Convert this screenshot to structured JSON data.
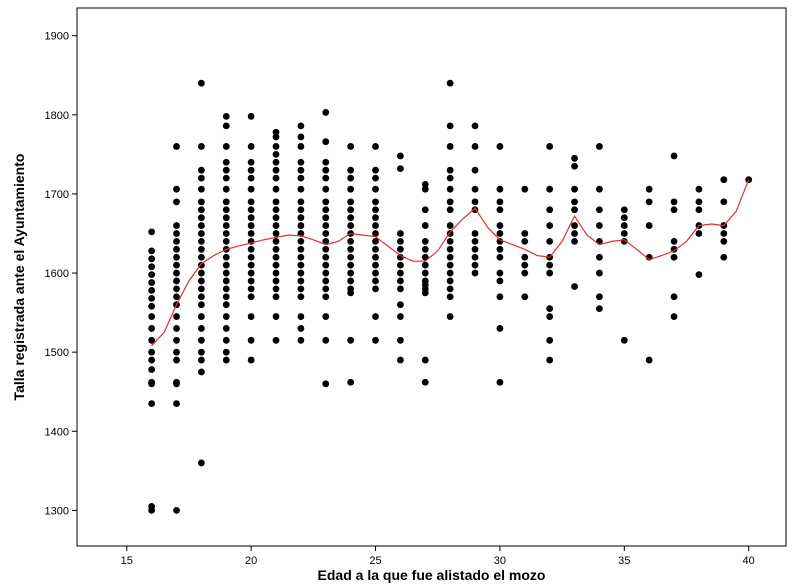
{
  "chart_data": {
    "type": "scatter",
    "title": "",
    "xlabel": "Edad a la que fue alistado el mozo",
    "ylabel": "Talla registrada ante el Ayuntamiento",
    "xlim": [
      13,
      41.5
    ],
    "ylim": [
      1255,
      1935
    ],
    "xticks": [
      15,
      20,
      25,
      30,
      35,
      40
    ],
    "yticks": [
      1300,
      1400,
      1500,
      1600,
      1700,
      1800,
      1900
    ],
    "grid": false,
    "legend": "none",
    "colors": {
      "points": "#000000",
      "smooth_line": "#e03030",
      "frame": "#000000"
    },
    "points": [
      {
        "x": 16,
        "y": [
          1652,
          1628,
          1618,
          1608,
          1598,
          1588,
          1578,
          1568,
          1558,
          1545,
          1530,
          1515,
          1500,
          1490,
          1478,
          1462,
          1460,
          1435,
          1305,
          1300
        ]
      },
      {
        "x": 17,
        "y": [
          1760,
          1706,
          1690,
          1660,
          1650,
          1640,
          1630,
          1620,
          1610,
          1600,
          1590,
          1580,
          1570,
          1560,
          1545,
          1530,
          1515,
          1500,
          1490,
          1462,
          1460,
          1435,
          1300
        ]
      },
      {
        "x": 18,
        "y": [
          1840,
          1760,
          1730,
          1720,
          1706,
          1690,
          1680,
          1670,
          1660,
          1650,
          1640,
          1630,
          1620,
          1610,
          1600,
          1590,
          1580,
          1570,
          1560,
          1545,
          1530,
          1515,
          1500,
          1490,
          1475,
          1360
        ]
      },
      {
        "x": 19,
        "y": [
          1798,
          1786,
          1760,
          1740,
          1730,
          1720,
          1706,
          1690,
          1680,
          1670,
          1660,
          1650,
          1640,
          1630,
          1620,
          1610,
          1600,
          1590,
          1580,
          1570,
          1560,
          1545,
          1530,
          1515,
          1500,
          1490
        ]
      },
      {
        "x": 20,
        "y": [
          1798,
          1760,
          1740,
          1730,
          1720,
          1706,
          1690,
          1680,
          1670,
          1660,
          1650,
          1640,
          1630,
          1620,
          1610,
          1600,
          1590,
          1580,
          1570,
          1545,
          1515,
          1490
        ]
      },
      {
        "x": 21,
        "y": [
          1778,
          1772,
          1760,
          1750,
          1740,
          1730,
          1720,
          1706,
          1690,
          1680,
          1670,
          1660,
          1650,
          1640,
          1630,
          1620,
          1610,
          1600,
          1590,
          1580,
          1570,
          1545,
          1515
        ]
      },
      {
        "x": 22,
        "y": [
          1786,
          1772,
          1760,
          1740,
          1730,
          1720,
          1706,
          1690,
          1680,
          1670,
          1660,
          1650,
          1640,
          1630,
          1620,
          1610,
          1600,
          1590,
          1580,
          1570,
          1545,
          1530,
          1515
        ]
      },
      {
        "x": 23,
        "y": [
          1803,
          1766,
          1740,
          1730,
          1720,
          1706,
          1690,
          1680,
          1670,
          1660,
          1650,
          1640,
          1630,
          1620,
          1610,
          1600,
          1590,
          1580,
          1570,
          1545,
          1515,
          1460
        ]
      },
      {
        "x": 24,
        "y": [
          1760,
          1730,
          1720,
          1706,
          1690,
          1680,
          1670,
          1660,
          1650,
          1640,
          1630,
          1620,
          1610,
          1600,
          1590,
          1580,
          1575,
          1515,
          1462
        ]
      },
      {
        "x": 25,
        "y": [
          1760,
          1730,
          1720,
          1706,
          1690,
          1680,
          1670,
          1660,
          1650,
          1640,
          1630,
          1620,
          1610,
          1600,
          1590,
          1580,
          1545,
          1515
        ]
      },
      {
        "x": 26,
        "y": [
          1748,
          1732,
          1650,
          1640,
          1630,
          1620,
          1610,
          1600,
          1590,
          1580,
          1560,
          1545,
          1515,
          1490
        ]
      },
      {
        "x": 27,
        "y": [
          1712,
          1706,
          1680,
          1660,
          1640,
          1630,
          1620,
          1610,
          1600,
          1590,
          1585,
          1580,
          1575,
          1490,
          1462
        ]
      },
      {
        "x": 28,
        "y": [
          1840,
          1786,
          1760,
          1730,
          1720,
          1706,
          1690,
          1680,
          1660,
          1650,
          1640,
          1630,
          1620,
          1610,
          1600,
          1590,
          1580,
          1570,
          1545
        ]
      },
      {
        "x": 29,
        "y": [
          1786,
          1760,
          1730,
          1706,
          1690,
          1680,
          1650,
          1640,
          1630,
          1620,
          1610,
          1600
        ]
      },
      {
        "x": 30,
        "y": [
          1760,
          1706,
          1690,
          1680,
          1660,
          1650,
          1640,
          1630,
          1620,
          1600,
          1590,
          1570,
          1530,
          1462
        ]
      },
      {
        "x": 31,
        "y": [
          1706,
          1650,
          1640,
          1620,
          1610,
          1600,
          1570
        ]
      },
      {
        "x": 32,
        "y": [
          1760,
          1706,
          1680,
          1660,
          1640,
          1620,
          1610,
          1600,
          1555,
          1545,
          1515,
          1490
        ]
      },
      {
        "x": 33,
        "y": [
          1745,
          1735,
          1706,
          1690,
          1680,
          1660,
          1650,
          1640,
          1583
        ]
      },
      {
        "x": 34,
        "y": [
          1760,
          1706,
          1680,
          1660,
          1640,
          1620,
          1600,
          1570,
          1555
        ]
      },
      {
        "x": 35,
        "y": [
          1680,
          1670,
          1660,
          1650,
          1640,
          1515
        ]
      },
      {
        "x": 36,
        "y": [
          1706,
          1690,
          1660,
          1620,
          1490
        ]
      },
      {
        "x": 37,
        "y": [
          1748,
          1690,
          1680,
          1640,
          1630,
          1620,
          1570,
          1545
        ]
      },
      {
        "x": 38,
        "y": [
          1706,
          1690,
          1680,
          1660,
          1650,
          1598
        ]
      },
      {
        "x": 39,
        "y": [
          1718,
          1690,
          1660,
          1650,
          1640,
          1620
        ]
      },
      {
        "x": 40,
        "y": [
          1718
        ]
      }
    ],
    "smooth_line": {
      "x": [
        16,
        16.5,
        17,
        17.5,
        18,
        18.5,
        19,
        19.5,
        20,
        20.5,
        21,
        21.5,
        22,
        22.5,
        23,
        23.5,
        24,
        24.5,
        25,
        25.5,
        26,
        26.5,
        27,
        27.5,
        28,
        28.5,
        29,
        29.5,
        30,
        30.5,
        31,
        31.5,
        32,
        32.5,
        33,
        33.5,
        34,
        34.5,
        35,
        35.5,
        36,
        36.5,
        37,
        37.5,
        38,
        38.5,
        39,
        39.5,
        40
      ],
      "y": [
        1508,
        1525,
        1560,
        1590,
        1612,
        1622,
        1630,
        1634,
        1638,
        1642,
        1645,
        1648,
        1647,
        1642,
        1636,
        1640,
        1650,
        1648,
        1646,
        1634,
        1622,
        1615,
        1615,
        1628,
        1652,
        1668,
        1682,
        1658,
        1642,
        1636,
        1630,
        1622,
        1620,
        1640,
        1672,
        1648,
        1636,
        1640,
        1642,
        1630,
        1617,
        1622,
        1628,
        1640,
        1660,
        1662,
        1660,
        1678,
        1718
      ]
    }
  }
}
